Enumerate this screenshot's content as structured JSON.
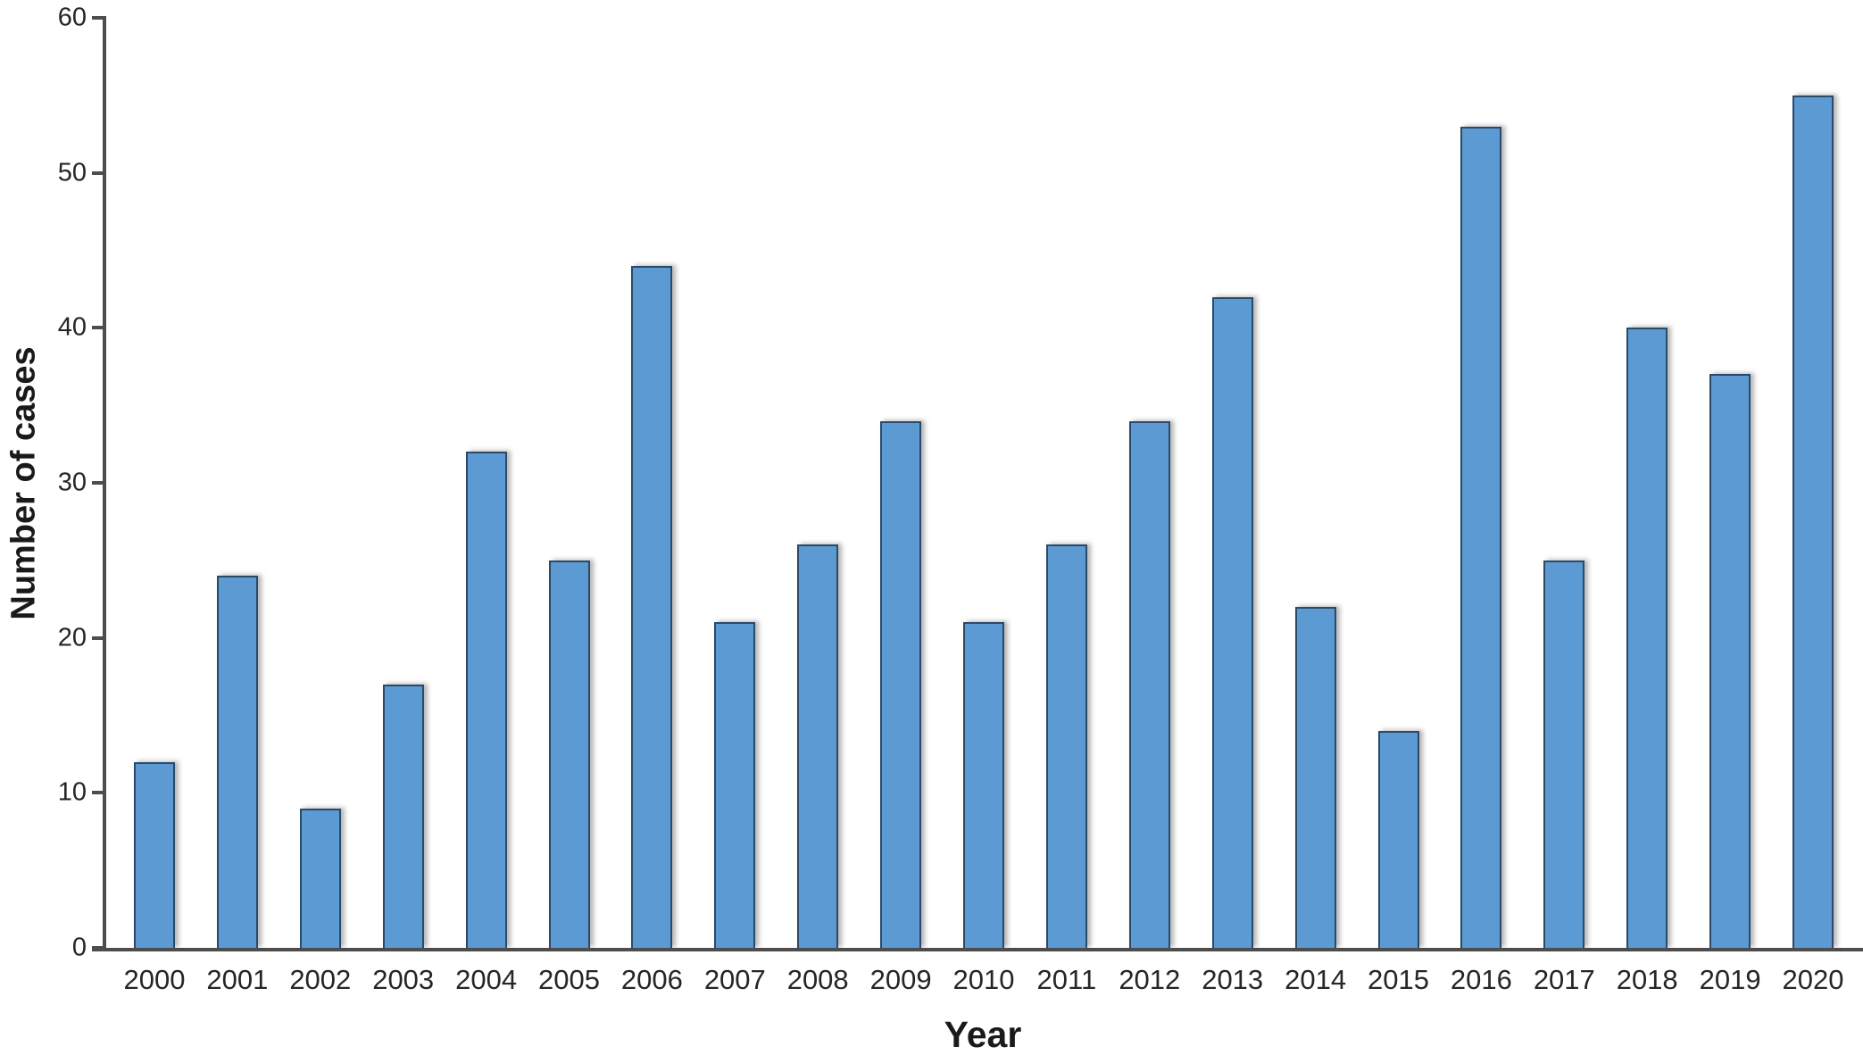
{
  "chart_data": {
    "type": "bar",
    "title": "",
    "categories": [
      "2000",
      "2001",
      "2002",
      "2003",
      "2004",
      "2005",
      "2006",
      "2007",
      "2008",
      "2009",
      "2010",
      "2011",
      "2012",
      "2013",
      "2014",
      "2015",
      "2016",
      "2017",
      "2018",
      "2019",
      "2020"
    ],
    "values": [
      12,
      24,
      9,
      17,
      32,
      25,
      44,
      21,
      26,
      34,
      21,
      26,
      34,
      42,
      22,
      14,
      53,
      25,
      40,
      37,
      55
    ],
    "xlabel": "Year",
    "ylabel": "Number of cases",
    "ylim": [
      0,
      60
    ],
    "yticks": [
      0,
      10,
      20,
      30,
      40,
      50,
      60
    ],
    "grid": false,
    "legend": "none",
    "colors": {
      "bar_fill": "#5b9ad3",
      "bar_border": "#2b4a68",
      "axis_line": "#4d4d4d",
      "tick_text": "#262626",
      "title_text": "#1a1a1a"
    }
  }
}
